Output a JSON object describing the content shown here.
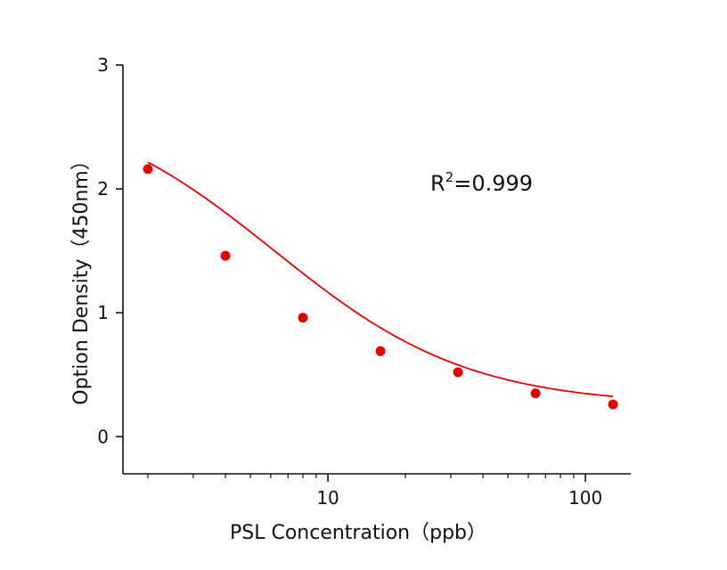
{
  "chart_data": {
    "type": "scatter",
    "xscale": "log",
    "xlim": [
      1.6,
      150
    ],
    "ylim": [
      -0.3,
      3
    ],
    "xticks": [
      10,
      100
    ],
    "xtick_labels": [
      "10",
      "100"
    ],
    "yticks": [
      0,
      1,
      2,
      3
    ],
    "ytick_labels": [
      "0",
      "1",
      "2",
      "3"
    ],
    "xlabel": "PSL  Concentration（ppb）",
    "ylabel": "Option Density（450nm）",
    "annotation": {
      "base": "R",
      "sup": "2",
      "rest": "=0.999"
    },
    "color": "#e00000",
    "points": [
      {
        "x": 2,
        "y": 2.16
      },
      {
        "x": 4,
        "y": 1.46
      },
      {
        "x": 8,
        "y": 0.96
      },
      {
        "x": 16,
        "y": 0.69
      },
      {
        "x": 32,
        "y": 0.52
      },
      {
        "x": 64,
        "y": 0.35
      },
      {
        "x": 128,
        "y": 0.26
      }
    ],
    "fit_curve": {
      "type": "4PL",
      "top": 2.75,
      "bottom": 0.25,
      "ec50": 6.2,
      "hill": 1.15,
      "x_range": [
        2,
        128
      ]
    }
  }
}
